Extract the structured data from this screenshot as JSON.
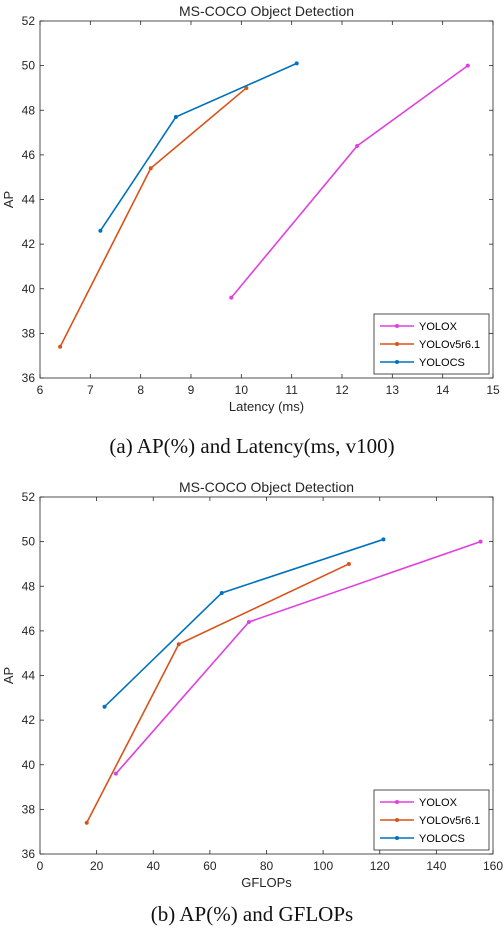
{
  "chart_data": [
    {
      "type": "line",
      "title": "MS-COCO Object Detection",
      "xlabel": "Latency (ms)",
      "ylabel": "AP",
      "xlim": [
        6,
        15
      ],
      "ylim": [
        36,
        52
      ],
      "xticks": [
        6,
        7,
        8,
        9,
        10,
        11,
        12,
        13,
        14,
        15
      ],
      "yticks": [
        36,
        38,
        40,
        42,
        44,
        46,
        48,
        50,
        52
      ],
      "legend_position": "bottom-right",
      "caption": "(a) AP(%) and Latency(ms, v100)",
      "series": [
        {
          "name": "YOLOX",
          "color": "#e040e0",
          "points": [
            [
              9.8,
              39.6
            ],
            [
              12.3,
              46.4
            ],
            [
              14.5,
              50.0
            ]
          ]
        },
        {
          "name": "YOLOv5r6.1",
          "color": "#d95319",
          "points": [
            [
              6.4,
              37.4
            ],
            [
              8.2,
              45.4
            ],
            [
              10.1,
              49.0
            ]
          ]
        },
        {
          "name": "YOLOCS",
          "color": "#0072bd",
          "points": [
            [
              7.2,
              42.6
            ],
            [
              8.7,
              47.7
            ],
            [
              11.1,
              50.1
            ]
          ]
        }
      ]
    },
    {
      "type": "line",
      "title": "MS-COCO Object Detection",
      "xlabel": "GFLOPs",
      "ylabel": "AP",
      "xlim": [
        0,
        160
      ],
      "ylim": [
        36,
        52
      ],
      "xticks": [
        0,
        20,
        40,
        60,
        80,
        100,
        120,
        140,
        160
      ],
      "yticks": [
        36,
        38,
        40,
        42,
        44,
        46,
        48,
        50,
        52
      ],
      "legend_position": "bottom-right",
      "caption": "(b) AP(%) and GFLOPs",
      "series": [
        {
          "name": "YOLOX",
          "color": "#e040e0",
          "points": [
            [
              26.8,
              39.6
            ],
            [
              73.8,
              46.4
            ],
            [
              155.6,
              50.0
            ]
          ]
        },
        {
          "name": "YOLOv5r6.1",
          "color": "#d95319",
          "points": [
            [
              16.5,
              37.4
            ],
            [
              49.0,
              45.4
            ],
            [
              109.1,
              49.0
            ]
          ]
        },
        {
          "name": "YOLOCS",
          "color": "#0072bd",
          "points": [
            [
              22.8,
              42.6
            ],
            [
              64.2,
              47.7
            ],
            [
              121.3,
              50.1
            ]
          ]
        }
      ]
    }
  ]
}
